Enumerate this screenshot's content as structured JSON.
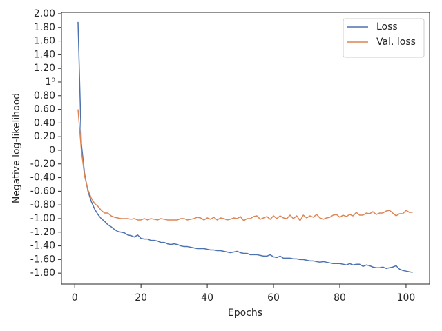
{
  "chart_data": {
    "type": "line",
    "x_label": "Epochs",
    "y_label": "Negative log-likelihood",
    "x": [
      1,
      2,
      3,
      4,
      5,
      6,
      7,
      8,
      9,
      10,
      11,
      12,
      13,
      14,
      15,
      16,
      17,
      18,
      19,
      20,
      21,
      22,
      23,
      24,
      25,
      26,
      27,
      28,
      29,
      30,
      31,
      32,
      33,
      34,
      35,
      36,
      37,
      38,
      39,
      40,
      41,
      42,
      43,
      44,
      45,
      46,
      47,
      48,
      49,
      50,
      51,
      52,
      53,
      54,
      55,
      56,
      57,
      58,
      59,
      60,
      61,
      62,
      63,
      64,
      65,
      66,
      67,
      68,
      69,
      70,
      71,
      72,
      73,
      74,
      75,
      76,
      77,
      78,
      79,
      80,
      81,
      82,
      83,
      84,
      85,
      86,
      87,
      88,
      89,
      90,
      91,
      92,
      93,
      94,
      95,
      96,
      97,
      98,
      99,
      100,
      101,
      102
    ],
    "series": [
      {
        "name": "Loss",
        "color": "#4c72b0",
        "values": [
          1.88,
          0.1,
          -0.35,
          -0.6,
          -0.75,
          -0.86,
          -0.94,
          -1.0,
          -1.04,
          -1.09,
          -1.12,
          -1.16,
          -1.19,
          -1.2,
          -1.21,
          -1.24,
          -1.25,
          -1.27,
          -1.24,
          -1.29,
          -1.3,
          -1.3,
          -1.32,
          -1.32,
          -1.33,
          -1.35,
          -1.35,
          -1.37,
          -1.38,
          -1.37,
          -1.38,
          -1.4,
          -1.41,
          -1.41,
          -1.42,
          -1.43,
          -1.44,
          -1.44,
          -1.44,
          -1.45,
          -1.46,
          -1.46,
          -1.47,
          -1.47,
          -1.48,
          -1.49,
          -1.5,
          -1.49,
          -1.48,
          -1.5,
          -1.51,
          -1.51,
          -1.53,
          -1.53,
          -1.53,
          -1.54,
          -1.55,
          -1.55,
          -1.53,
          -1.56,
          -1.57,
          -1.55,
          -1.58,
          -1.58,
          -1.58,
          -1.59,
          -1.59,
          -1.6,
          -1.6,
          -1.61,
          -1.62,
          -1.62,
          -1.63,
          -1.64,
          -1.63,
          -1.64,
          -1.65,
          -1.66,
          -1.66,
          -1.66,
          -1.67,
          -1.68,
          -1.66,
          -1.68,
          -1.67,
          -1.67,
          -1.7,
          -1.68,
          -1.69,
          -1.71,
          -1.72,
          -1.72,
          -1.71,
          -1.73,
          -1.72,
          -1.71,
          -1.69,
          -1.74,
          -1.76,
          -1.77,
          -1.78,
          -1.79
        ]
      },
      {
        "name": "Val. loss",
        "color": "#dd8452",
        "values": [
          0.6,
          0.0,
          -0.38,
          -0.58,
          -0.7,
          -0.78,
          -0.82,
          -0.88,
          -0.92,
          -0.92,
          -0.96,
          -0.98,
          -0.99,
          -1.0,
          -1.0,
          -1.0,
          -1.01,
          -1.0,
          -1.02,
          -1.02,
          -1.0,
          -1.02,
          -1.0,
          -1.01,
          -1.02,
          -1.0,
          -1.01,
          -1.02,
          -1.02,
          -1.02,
          -1.02,
          -1.0,
          -1.0,
          -1.02,
          -1.01,
          -1.0,
          -0.98,
          -0.99,
          -1.02,
          -0.99,
          -1.01,
          -0.98,
          -1.02,
          -0.99,
          -1.0,
          -1.02,
          -1.01,
          -0.99,
          -1.0,
          -0.97,
          -1.03,
          -1.0,
          -1.0,
          -0.97,
          -0.96,
          -1.01,
          -0.99,
          -0.97,
          -1.01,
          -0.96,
          -1.0,
          -0.96,
          -0.99,
          -1.0,
          -0.95,
          -1.0,
          -0.96,
          -1.03,
          -0.95,
          -0.99,
          -0.96,
          -0.98,
          -0.94,
          -0.99,
          -1.01,
          -0.99,
          -0.98,
          -0.95,
          -0.94,
          -0.98,
          -0.95,
          -0.97,
          -0.94,
          -0.96,
          -0.91,
          -0.95,
          -0.95,
          -0.92,
          -0.93,
          -0.9,
          -0.94,
          -0.92,
          -0.92,
          -0.89,
          -0.88,
          -0.92,
          -0.96,
          -0.93,
          -0.93,
          -0.88,
          -0.91,
          -0.91
        ]
      }
    ],
    "xlim": [
      -4.0,
      107.1
    ],
    "ylim": [
      -1.96,
      2.02
    ],
    "xticks": [
      0,
      20,
      40,
      60,
      80,
      100
    ],
    "yticks": [
      {
        "value": 2.0,
        "label": "2.00"
      },
      {
        "value": 1.8,
        "label": "1.80"
      },
      {
        "value": 1.6,
        "label": "1.60"
      },
      {
        "value": 1.4,
        "label": "1.40"
      },
      {
        "value": 1.2,
        "label": "1.20"
      },
      {
        "value": 1,
        "label": "1⁰"
      },
      {
        "value": 0.8,
        "label": "0.80"
      },
      {
        "value": 0.6,
        "label": "0.60"
      },
      {
        "value": 0.4,
        "label": "0.40"
      },
      {
        "value": 0.2,
        "label": "0.20"
      },
      0,
      {
        "value": -0.2,
        "label": "-0.20"
      },
      {
        "value": -0.4,
        "label": "-0.40"
      },
      {
        "value": -0.6,
        "label": "-0.60"
      },
      {
        "value": -0.8,
        "label": "-0.80"
      },
      {
        "value": -1.0,
        "label": "-1.00"
      },
      {
        "value": -1.2,
        "label": "-1.20"
      },
      {
        "value": -1.4,
        "label": "-1.40"
      },
      {
        "value": -1.6,
        "label": "-1.60"
      },
      {
        "value": -1.8,
        "label": "-1.80"
      }
    ],
    "grid": false,
    "legend": "upper right"
  }
}
